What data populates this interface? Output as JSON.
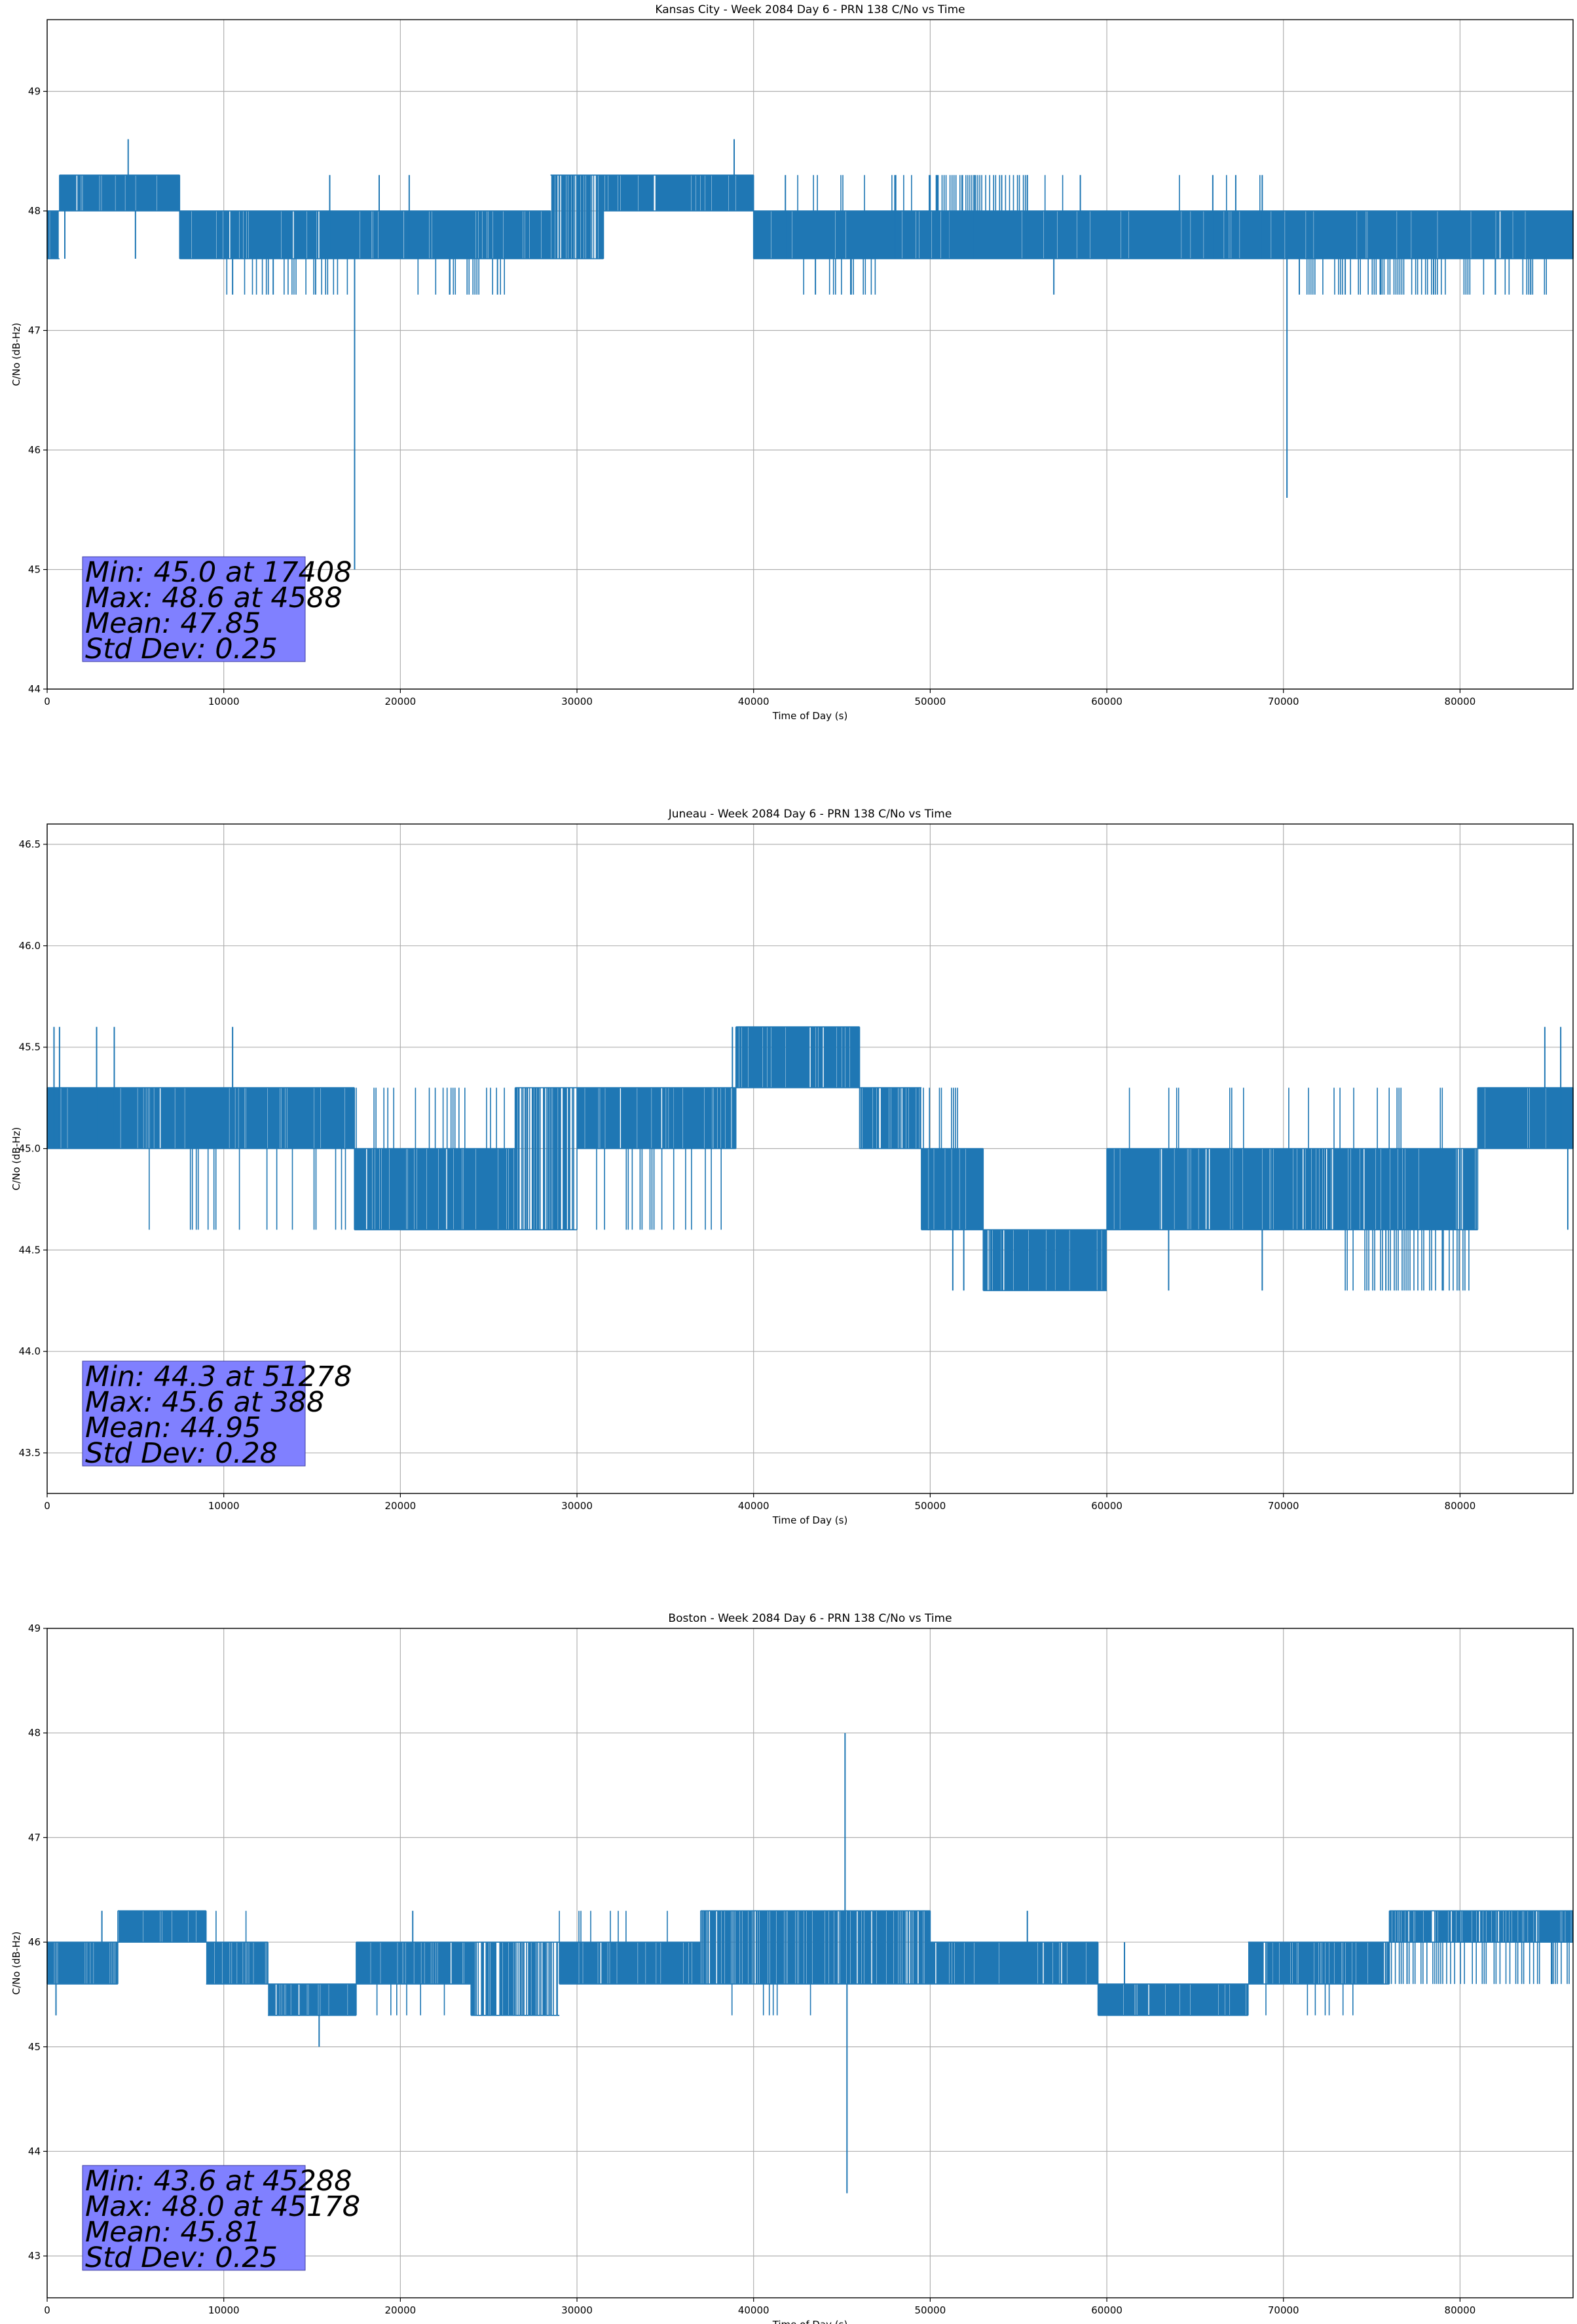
{
  "chart_data": [
    {
      "type": "line",
      "title": "Kansas City - Week 2084 Day 6 - PRN 138 C/No vs Time",
      "xlabel": "Time of Day (s)",
      "ylabel": "C/No (dB-Hz)",
      "xlim": [
        0,
        86400
      ],
      "ylim": [
        44.0,
        49.6
      ],
      "grid": true,
      "line_color": "#1f77b4",
      "xticks": [
        0,
        10000,
        20000,
        30000,
        40000,
        50000,
        60000,
        70000,
        80000
      ],
      "yticks": [
        44,
        45,
        46,
        47,
        48,
        49
      ],
      "ytick_labels": [
        "44",
        "45",
        "46",
        "47",
        "48",
        "49"
      ],
      "series": [
        {
          "segments": [
            {
              "x_start": 0,
              "x_end": 700,
              "low": 47.6,
              "high": 48.0,
              "density": 0.8
            },
            {
              "x_start": 700,
              "x_end": 7500,
              "low": 48.0,
              "high": 48.3,
              "density": 0.95
            },
            {
              "x_start": 7500,
              "x_end": 28500,
              "low": 47.6,
              "high": 48.0,
              "density": 0.95
            },
            {
              "x_start": 28500,
              "x_end": 31500,
              "low": 47.6,
              "high": 48.3,
              "density": 0.7
            },
            {
              "x_start": 31500,
              "x_end": 40000,
              "low": 48.0,
              "high": 48.3,
              "density": 0.95
            },
            {
              "x_start": 40000,
              "x_end": 86400,
              "low": 47.6,
              "high": 48.0,
              "density": 0.95
            }
          ],
          "excursions": [
            {
              "x": 1000,
              "low": 47.6,
              "high": 48.3
            },
            {
              "x": 4588,
              "low": 48.0,
              "high": 48.6
            },
            {
              "x": 5000,
              "low": 47.6,
              "high": 48.0
            },
            {
              "x": 10500,
              "low": 47.3,
              "high": 47.6
            },
            {
              "x": 12800,
              "low": 47.3,
              "high": 47.6
            },
            {
              "x": 15200,
              "low": 47.3,
              "high": 47.6
            },
            {
              "x": 16000,
              "low": 47.6,
              "high": 48.3
            },
            {
              "x": 17408,
              "low": 45.0,
              "high": 47.6
            },
            {
              "x": 18800,
              "low": 47.6,
              "high": 48.3
            },
            {
              "x": 20500,
              "low": 47.6,
              "high": 48.3
            },
            {
              "x": 22800,
              "low": 47.3,
              "high": 47.6
            },
            {
              "x": 25500,
              "low": 47.3,
              "high": 47.6
            },
            {
              "x": 38900,
              "low": 48.0,
              "high": 48.6
            },
            {
              "x": 41800,
              "low": 47.6,
              "high": 48.3
            },
            {
              "x": 43500,
              "low": 47.3,
              "high": 47.6
            },
            {
              "x": 45500,
              "low": 47.3,
              "high": 47.6
            },
            {
              "x": 48000,
              "low": 47.6,
              "high": 48.3
            },
            {
              "x": 52500,
              "low": 47.6,
              "high": 48.3
            },
            {
              "x": 55500,
              "low": 47.6,
              "high": 48.3
            },
            {
              "x": 57000,
              "low": 47.3,
              "high": 47.6
            },
            {
              "x": 58500,
              "low": 47.6,
              "high": 48.3
            },
            {
              "x": 66000,
              "low": 47.6,
              "high": 48.3
            },
            {
              "x": 67300,
              "low": 47.6,
              "high": 48.3
            },
            {
              "x": 68800,
              "low": 47.6,
              "high": 48.3
            },
            {
              "x": 70200,
              "low": 45.6,
              "high": 47.6
            },
            {
              "x": 70900,
              "low": 47.3,
              "high": 47.6
            },
            {
              "x": 73500,
              "low": 47.3,
              "high": 47.6
            },
            {
              "x": 75500,
              "low": 47.3,
              "high": 47.6
            },
            {
              "x": 78500,
              "low": 47.3,
              "high": 47.6
            },
            {
              "x": 82000,
              "low": 47.3,
              "high": 47.6
            },
            {
              "x": 84000,
              "low": 47.3,
              "high": 47.6
            }
          ],
          "dips": [
            {
              "x_start": 9500,
              "x_end": 17000,
              "low": 47.3,
              "high": 47.6,
              "density": 0.3
            },
            {
              "x_start": 21000,
              "x_end": 26000,
              "low": 47.3,
              "high": 47.6,
              "density": 0.3
            },
            {
              "x_start": 42500,
              "x_end": 47000,
              "low": 47.3,
              "high": 47.6,
              "density": 0.2
            },
            {
              "x_start": 71000,
              "x_end": 79500,
              "low": 47.3,
              "high": 47.6,
              "density": 0.45
            },
            {
              "x_start": 80000,
              "x_end": 85000,
              "low": 47.3,
              "high": 47.6,
              "density": 0.4
            }
          ],
          "spikes_up": [
            {
              "x_start": 40500,
              "x_end": 58500,
              "low": 47.6,
              "high": 48.3,
              "density": 0.15
            },
            {
              "x_start": 50000,
              "x_end": 55500,
              "low": 47.6,
              "high": 48.3,
              "density": 0.7
            },
            {
              "x_start": 64000,
              "x_end": 69000,
              "low": 47.6,
              "high": 48.3,
              "density": 0.08
            }
          ]
        }
      ],
      "stats": [
        "Min: 45.0 at 17408",
        "Max: 48.6 at 4588",
        "Mean: 47.85",
        "Std Dev: 0.25"
      ]
    },
    {
      "type": "line",
      "title": "Juneau - Week 2084 Day 6 - PRN 138 C/No vs Time",
      "xlabel": "Time of Day (s)",
      "ylabel": "C/No (dB-Hz)",
      "xlim": [
        0,
        86400
      ],
      "ylim": [
        43.3,
        46.6
      ],
      "grid": true,
      "line_color": "#1f77b4",
      "xticks": [
        0,
        10000,
        20000,
        30000,
        40000,
        50000,
        60000,
        70000,
        80000
      ],
      "yticks": [
        43.5,
        44.0,
        44.5,
        45.0,
        45.5,
        46.0,
        46.5
      ],
      "ytick_labels": [
        "43.5",
        "44.0",
        "44.5",
        "45.0",
        "45.5",
        "46.0",
        "46.5"
      ],
      "series": [
        {
          "segments": [
            {
              "x_start": 0,
              "x_end": 17400,
              "low": 45.0,
              "high": 45.3,
              "density": 0.95
            },
            {
              "x_start": 17400,
              "x_end": 26500,
              "low": 44.6,
              "high": 45.0,
              "density": 0.9
            },
            {
              "x_start": 26500,
              "x_end": 30000,
              "low": 44.6,
              "high": 45.3,
              "density": 0.6
            },
            {
              "x_start": 30000,
              "x_end": 39000,
              "low": 45.0,
              "high": 45.3,
              "density": 0.9
            },
            {
              "x_start": 39000,
              "x_end": 46000,
              "low": 45.3,
              "high": 45.6,
              "density": 0.9
            },
            {
              "x_start": 46000,
              "x_end": 49500,
              "low": 45.0,
              "high": 45.3,
              "density": 0.8
            },
            {
              "x_start": 49500,
              "x_end": 53000,
              "low": 44.6,
              "high": 45.0,
              "density": 0.95
            },
            {
              "x_start": 53000,
              "x_end": 60000,
              "low": 44.3,
              "high": 44.6,
              "density": 0.95
            },
            {
              "x_start": 60000,
              "x_end": 81000,
              "low": 44.6,
              "high": 45.0,
              "density": 0.9
            },
            {
              "x_start": 81000,
              "x_end": 86400,
              "low": 45.0,
              "high": 45.3,
              "density": 0.95
            }
          ],
          "excursions": [
            {
              "x": 388,
              "low": 45.0,
              "high": 45.6
            },
            {
              "x": 700,
              "low": 45.0,
              "high": 45.6
            },
            {
              "x": 2800,
              "low": 45.0,
              "high": 45.6
            },
            {
              "x": 3800,
              "low": 45.0,
              "high": 45.6
            },
            {
              "x": 10500,
              "low": 45.0,
              "high": 45.6
            },
            {
              "x": 38800,
              "low": 45.0,
              "high": 45.6
            },
            {
              "x": 51278,
              "low": 44.3,
              "high": 44.6
            },
            {
              "x": 51900,
              "low": 44.3,
              "high": 44.6
            },
            {
              "x": 63500,
              "low": 44.3,
              "high": 44.6
            },
            {
              "x": 68800,
              "low": 44.3,
              "high": 44.6
            },
            {
              "x": 75800,
              "low": 44.3,
              "high": 44.6
            },
            {
              "x": 79000,
              "low": 44.3,
              "high": 44.6
            },
            {
              "x": 84800,
              "low": 45.0,
              "high": 45.6
            },
            {
              "x": 85700,
              "low": 45.0,
              "high": 45.6
            },
            {
              "x": 86100,
              "low": 44.6,
              "high": 45.0
            }
          ],
          "dips": [
            {
              "x_start": 5000,
              "x_end": 17000,
              "low": 44.6,
              "high": 45.0,
              "density": 0.15
            },
            {
              "x_start": 31000,
              "x_end": 38500,
              "low": 44.6,
              "high": 45.0,
              "density": 0.25
            },
            {
              "x_start": 73500,
              "x_end": 80500,
              "low": 44.3,
              "high": 44.6,
              "density": 0.5
            }
          ],
          "spikes_up": [
            {
              "x_start": 17500,
              "x_end": 26000,
              "low": 45.0,
              "high": 45.3,
              "density": 0.2
            },
            {
              "x_start": 60500,
              "x_end": 81000,
              "low": 45.0,
              "high": 45.3,
              "density": 0.12
            },
            {
              "x_start": 49500,
              "x_end": 52000,
              "low": 45.0,
              "high": 45.3,
              "density": 0.2
            }
          ]
        }
      ],
      "stats": [
        "Min: 44.3 at 51278",
        "Max: 45.6 at 388",
        "Mean: 44.95",
        "Std Dev: 0.28"
      ]
    },
    {
      "type": "line",
      "title": "Boston - Week 2084 Day 6 - PRN 138 C/No vs Time",
      "xlabel": "Time of Day (s)",
      "ylabel": "C/No (dB-Hz)",
      "xlim": [
        0,
        86400
      ],
      "ylim": [
        42.6,
        49.0
      ],
      "grid": true,
      "line_color": "#1f77b4",
      "xticks": [
        0,
        10000,
        20000,
        30000,
        40000,
        50000,
        60000,
        70000,
        80000
      ],
      "yticks": [
        43,
        44,
        45,
        46,
        47,
        48,
        49
      ],
      "ytick_labels": [
        "43",
        "44",
        "45",
        "46",
        "47",
        "48",
        "49"
      ],
      "series": [
        {
          "segments": [
            {
              "x_start": 0,
              "x_end": 4000,
              "low": 45.6,
              "high": 46.0,
              "density": 0.9
            },
            {
              "x_start": 4000,
              "x_end": 9000,
              "low": 46.0,
              "high": 46.3,
              "density": 0.95
            },
            {
              "x_start": 9000,
              "x_end": 12500,
              "low": 45.6,
              "high": 46.0,
              "density": 0.9
            },
            {
              "x_start": 12500,
              "x_end": 17500,
              "low": 45.3,
              "high": 45.6,
              "density": 0.9
            },
            {
              "x_start": 17500,
              "x_end": 24000,
              "low": 45.6,
              "high": 46.0,
              "density": 0.9
            },
            {
              "x_start": 24000,
              "x_end": 29000,
              "low": 45.3,
              "high": 46.0,
              "density": 0.6
            },
            {
              "x_start": 29000,
              "x_end": 37000,
              "low": 45.6,
              "high": 46.0,
              "density": 0.9
            },
            {
              "x_start": 37000,
              "x_end": 50000,
              "low": 45.6,
              "high": 46.3,
              "density": 0.8
            },
            {
              "x_start": 50000,
              "x_end": 59500,
              "low": 45.6,
              "high": 46.0,
              "density": 0.9
            },
            {
              "x_start": 59500,
              "x_end": 68000,
              "low": 45.3,
              "high": 45.6,
              "density": 0.95
            },
            {
              "x_start": 68000,
              "x_end": 76000,
              "low": 45.6,
              "high": 46.0,
              "density": 0.9
            },
            {
              "x_start": 76000,
              "x_end": 86400,
              "low": 46.0,
              "high": 46.3,
              "density": 0.85
            }
          ],
          "excursions": [
            {
              "x": 500,
              "low": 45.3,
              "high": 45.6
            },
            {
              "x": 3100,
              "low": 46.0,
              "high": 46.3
            },
            {
              "x": 15400,
              "low": 45.0,
              "high": 45.3
            },
            {
              "x": 20700,
              "low": 46.0,
              "high": 46.3
            },
            {
              "x": 45178,
              "low": 46.3,
              "high": 48.0
            },
            {
              "x": 45288,
              "low": 43.6,
              "high": 45.6
            },
            {
              "x": 55500,
              "low": 46.0,
              "high": 46.3
            },
            {
              "x": 61000,
              "low": 45.6,
              "high": 46.0
            },
            {
              "x": 69500,
              "low": 45.6,
              "high": 46.0
            },
            {
              "x": 77000,
              "low": 45.6,
              "high": 46.0
            },
            {
              "x": 85200,
              "low": 45.6,
              "high": 46.0
            }
          ],
          "dips": [
            {
              "x_start": 18000,
              "x_end": 23500,
              "low": 45.3,
              "high": 45.6,
              "density": 0.1
            },
            {
              "x_start": 37000,
              "x_end": 50000,
              "low": 45.3,
              "high": 45.6,
              "density": 0.05
            },
            {
              "x_start": 76000,
              "x_end": 86400,
              "low": 45.6,
              "high": 46.0,
              "density": 0.5
            },
            {
              "x_start": 68000,
              "x_end": 75500,
              "low": 45.3,
              "high": 45.6,
              "density": 0.1
            }
          ],
          "spikes_up": [
            {
              "x_start": 9000,
              "x_end": 12500,
              "low": 46.0,
              "high": 46.3,
              "density": 0.15
            },
            {
              "x_start": 29000,
              "x_end": 37000,
              "low": 46.0,
              "high": 46.3,
              "density": 0.1
            }
          ]
        }
      ],
      "stats": [
        "Min: 43.6 at 45288",
        "Max: 48.0 at 45178",
        "Mean: 45.81",
        "Std Dev: 0.25"
      ]
    }
  ]
}
